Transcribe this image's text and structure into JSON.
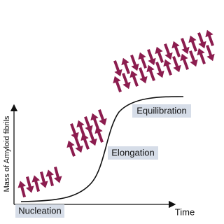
{
  "diagram": {
    "y_axis_label": "Mass of Amyloid fibrils",
    "x_axis_label": "Time",
    "phases": [
      {
        "label": "Nucleation"
      },
      {
        "label": "Elongation"
      },
      {
        "label": "Equilibration"
      }
    ]
  }
}
